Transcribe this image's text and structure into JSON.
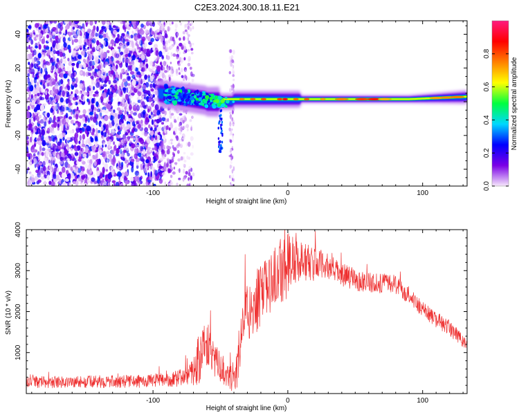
{
  "title": "C2E3.2024.300.18.11.E21",
  "chart_data": [
    {
      "type": "heatmap",
      "xlabel": "Height of straight line (km)",
      "ylabel": "Frequency (Hz)",
      "xlim": [
        -194,
        133
      ],
      "ylim": [
        -50,
        48
      ],
      "xticks": [
        -100,
        0,
        100
      ],
      "xtick_labels": [
        "-100",
        "0",
        "100"
      ],
      "yticks": [
        -40,
        -20,
        0,
        20,
        40
      ],
      "ytick_labels": [
        "-40",
        "-20",
        "0",
        "20",
        "40"
      ],
      "colorbar": {
        "label": "Normalized spectral amplitude",
        "range": [
          0,
          1
        ],
        "ticks": [
          0,
          0.2,
          0.4,
          0.6,
          0.8
        ],
        "tick_labels": [
          "0.0",
          "0.2",
          "0.4",
          "0.6",
          "0.8"
        ],
        "colors": [
          "#f6e8fb",
          "#7a00e6",
          "#0000ff",
          "#00d8ff",
          "#00ff40",
          "#ffff00",
          "#ff8000",
          "#ff0000",
          "#ff1a7f"
        ]
      },
      "regions": [
        {
          "name": "noise-scatter",
          "x": [
            -194,
            -92
          ],
          "freq_range": [
            -50,
            48
          ],
          "amplitude": 0.15
        },
        {
          "name": "fading-scatter",
          "x": [
            -92,
            -70
          ],
          "freq_range": [
            -50,
            48
          ],
          "amplitude": 0.08
        },
        {
          "name": "isolated-column",
          "x": [
            -43,
            -40
          ],
          "freq_range": [
            -50,
            30
          ],
          "amplitude": 0.07
        },
        {
          "name": "onset-blob",
          "x": [
            -92,
            -48
          ],
          "freq_center": 3,
          "amplitude": 0.35
        },
        {
          "name": "narrowband-trace",
          "x": [
            -48,
            133
          ],
          "freq_center": 2,
          "amplitude": 0.85
        }
      ]
    },
    {
      "type": "line",
      "xlabel": "Height of straight line (km)",
      "ylabel": "SNR (10 * v/v)",
      "xlim": [
        -194,
        133
      ],
      "ylim": [
        0,
        4000
      ],
      "xticks": [
        -100,
        0,
        100
      ],
      "xtick_labels": [
        "-100",
        "0",
        "100"
      ],
      "yticks": [
        1000,
        2000,
        3000,
        4000
      ],
      "ytick_labels": [
        "1000",
        "2000",
        "3000",
        "4000"
      ],
      "color": "#ee3030",
      "series": [
        {
          "name": "SNR envelope",
          "x": [
            -194,
            -170,
            -140,
            -110,
            -90,
            -80,
            -72,
            -66,
            -62,
            -58,
            -54,
            -50,
            -46,
            -42,
            -38,
            -34,
            -30,
            -26,
            -22,
            -18,
            -14,
            -10,
            -6,
            -2,
            2,
            6,
            10,
            15,
            20,
            25,
            30,
            40,
            50,
            60,
            70,
            75,
            80,
            90,
            100,
            110,
            120,
            128,
            133
          ],
          "y": [
            280,
            280,
            290,
            300,
            330,
            380,
            500,
            800,
            1300,
            1150,
            800,
            650,
            450,
            350,
            450,
            1700,
            2000,
            2100,
            2300,
            2450,
            2650,
            2850,
            3000,
            3100,
            3250,
            3300,
            3250,
            3200,
            3150,
            3150,
            3100,
            2900,
            2780,
            2720,
            2680,
            2720,
            2650,
            2400,
            2050,
            1800,
            1600,
            1350,
            1100
          ]
        }
      ],
      "noise_amplitude": [
        [
          -194,
          140
        ],
        [
          -90,
          160
        ],
        [
          -72,
          250
        ],
        [
          -66,
          700
        ],
        [
          -56,
          450
        ],
        [
          -44,
          250
        ],
        [
          -36,
          600
        ],
        [
          -25,
          800
        ],
        [
          -10,
          700
        ],
        [
          0,
          900
        ],
        [
          10,
          500
        ],
        [
          30,
          300
        ],
        [
          60,
          250
        ],
        [
          100,
          200
        ],
        [
          133,
          180
        ]
      ]
    }
  ]
}
